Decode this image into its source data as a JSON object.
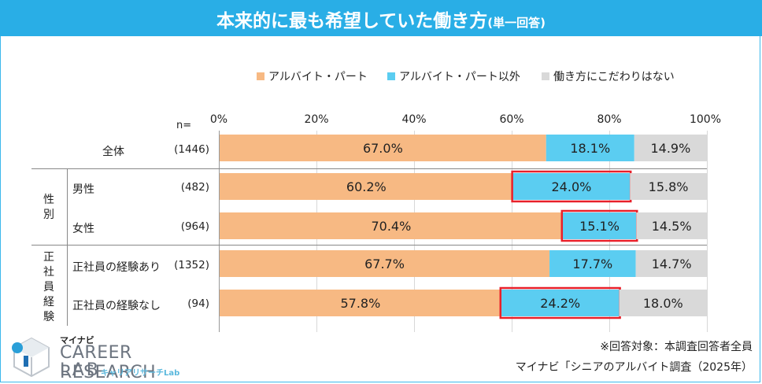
{
  "header": {
    "title": "本来的に最も希望していた働き方",
    "subtitle": "(単一回答)"
  },
  "legend": [
    {
      "label": "アルバイト・パート",
      "color": "#f7b983"
    },
    {
      "label": "アルバイト・パート以外",
      "color": "#5bcdf1"
    },
    {
      "label": "働き方にこだわりはない",
      "color": "#d9d9d9"
    }
  ],
  "axis": {
    "n_label": "n=",
    "ticks": [
      "0%",
      "20%",
      "40%",
      "60%",
      "80%",
      "100%"
    ]
  },
  "groups": [
    {
      "label": "性別"
    },
    {
      "label": "正社員経験"
    }
  ],
  "chart_data": {
    "type": "bar",
    "stacked": true,
    "orientation": "horizontal",
    "categories": [
      "全体",
      "男性",
      "女性",
      "正社員の経験あり",
      "正社員の経験なし"
    ],
    "counts": [
      "(1446)",
      "(482)",
      "(964)",
      "(1352)",
      "(94)"
    ],
    "series": [
      {
        "name": "アルバイト・パート",
        "values": [
          67.0,
          60.2,
          70.4,
          67.7,
          57.8
        ],
        "labels": [
          "67.0%",
          "60.2%",
          "70.4%",
          "67.7%",
          "57.8%"
        ]
      },
      {
        "name": "アルバイト・パート以外",
        "values": [
          18.1,
          24.0,
          15.1,
          17.7,
          24.2
        ],
        "labels": [
          "18.1%",
          "24.0%",
          "15.1%",
          "17.7%",
          "24.2%"
        ]
      },
      {
        "name": "働き方にこだわりはない",
        "values": [
          14.9,
          15.8,
          14.5,
          14.7,
          18.0
        ],
        "labels": [
          "14.9%",
          "15.8%",
          "14.5%",
          "14.7%",
          "18.0%"
        ]
      }
    ],
    "highlighted": [
      [
        1,
        1
      ],
      [
        2,
        1
      ],
      [
        4,
        1
      ]
    ],
    "xlim": [
      0,
      100
    ]
  },
  "footer": {
    "note": "※回答対象：本調査回答者全員",
    "source": "マイナビ「シニアのアルバイト調査（2025年）"
  },
  "logo": {
    "top": "マイナビ",
    "main": "CAREER RESEARCH",
    "lab": "LAB",
    "kana": "キャリアリサーチLab"
  }
}
